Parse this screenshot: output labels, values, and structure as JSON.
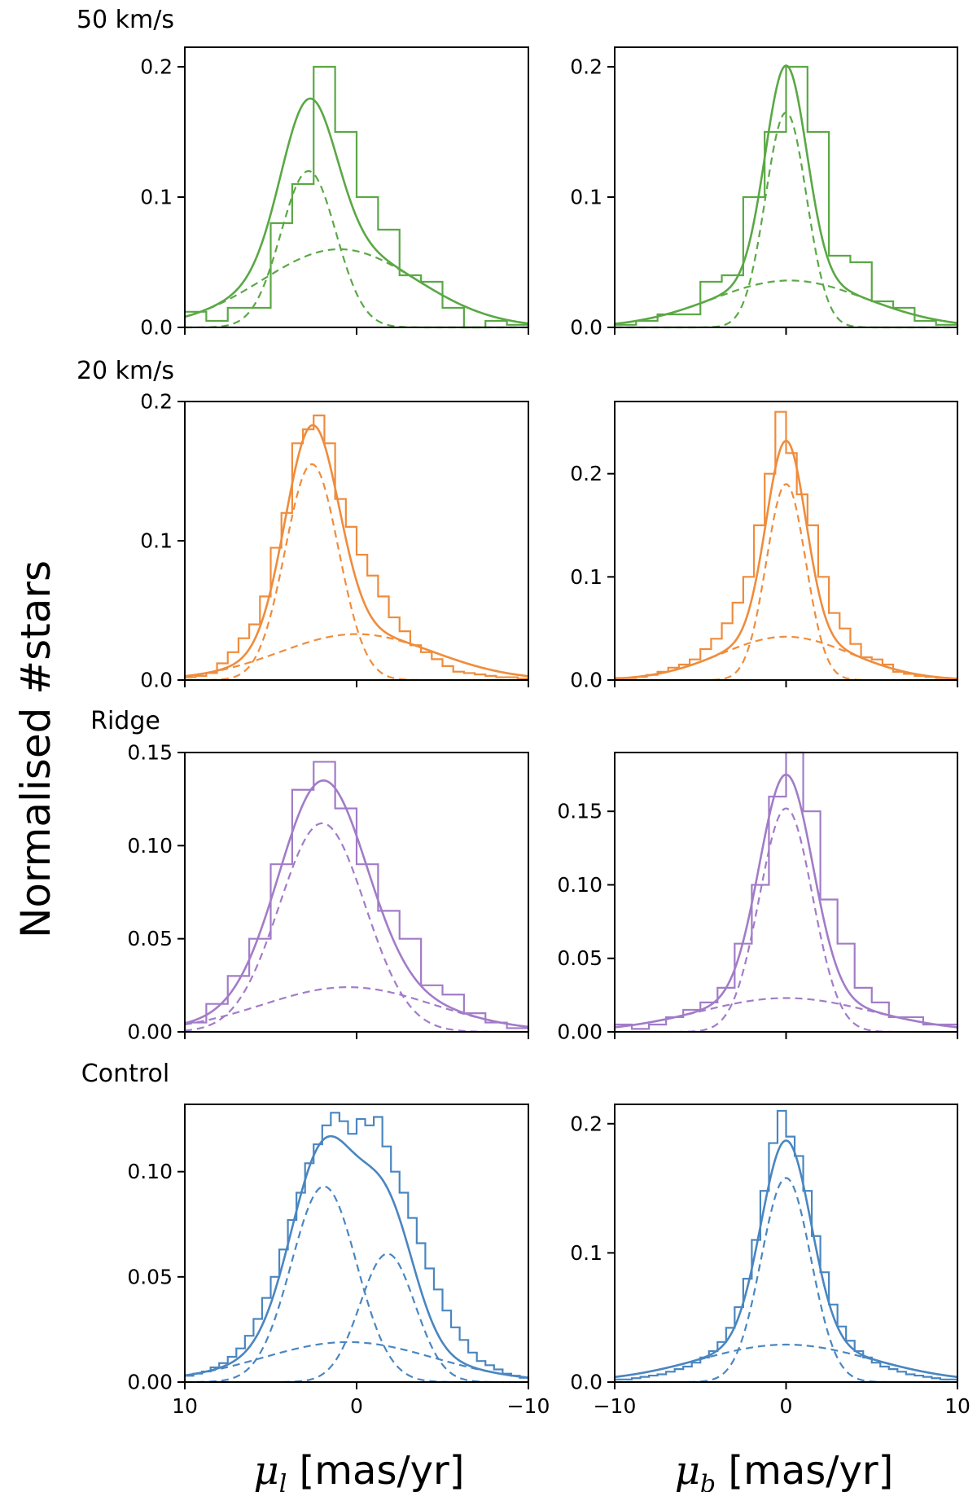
{
  "figure": {
    "ylabel": "Normalised #stars",
    "xlabel_left": {
      "symbol": "μ",
      "sub": "l",
      "unit": " [mas/yr]"
    },
    "xlabel_right": {
      "symbol": "μ",
      "sub": "b",
      "unit": " [mas/yr]"
    }
  },
  "chart_data": [
    {
      "type": "histogram",
      "row_label": "50 km/s",
      "color": "#5aa845",
      "xaxis": "mu_l",
      "xlim": [
        10,
        -10
      ],
      "ylim": [
        0,
        0.215
      ],
      "yticks": [
        0.0,
        0.1,
        0.2
      ],
      "ytick_labels": [
        "0.0",
        "0.1",
        "0.2"
      ],
      "xtick_labels": [],
      "bin_edges": [
        10,
        8.75,
        7.5,
        6.25,
        5,
        3.75,
        2.5,
        1.25,
        0,
        -1.25,
        -2.5,
        -3.75,
        -5,
        -6.25,
        -7.5,
        -8.75,
        -10
      ],
      "bin_values": [
        0.012,
        0.005,
        0.015,
        0.015,
        0.08,
        0.11,
        0.2,
        0.15,
        0.1,
        0.075,
        0.04,
        0.035,
        0.015,
        0.0,
        0.005,
        0.002
      ],
      "components": [
        {
          "style": "dashed",
          "amp": 0.12,
          "mu": 2.8,
          "sigma": 1.6
        },
        {
          "style": "dashed",
          "amp": 0.06,
          "mu": 1.0,
          "sigma": 4.5
        }
      ]
    },
    {
      "type": "histogram",
      "row_label": "",
      "color": "#5aa845",
      "xaxis": "mu_b",
      "xlim": [
        -10,
        10
      ],
      "ylim": [
        0,
        0.215
      ],
      "yticks": [
        0.0,
        0.1,
        0.2
      ],
      "ytick_labels": [
        "0.0",
        "0.1",
        "0.2"
      ],
      "xtick_labels": [],
      "bin_edges": [
        -10,
        -8.75,
        -7.5,
        -6.25,
        -5,
        -3.75,
        -2.5,
        -1.25,
        0,
        1.25,
        2.5,
        3.75,
        5,
        6.25,
        7.5,
        8.75,
        10
      ],
      "bin_values": [
        0.002,
        0.005,
        0.01,
        0.01,
        0.035,
        0.04,
        0.1,
        0.15,
        0.2,
        0.15,
        0.055,
        0.05,
        0.02,
        0.015,
        0.005,
        0.002
      ],
      "components": [
        {
          "style": "dashed",
          "amp": 0.165,
          "mu": 0.0,
          "sigma": 1.2
        },
        {
          "style": "dashed",
          "amp": 0.036,
          "mu": 0.2,
          "sigma": 4.5
        }
      ]
    },
    {
      "type": "histogram",
      "row_label": "20 km/s",
      "color": "#ef8c3c",
      "xaxis": "mu_l",
      "xlim": [
        10,
        -10
      ],
      "ylim": [
        0,
        0.2
      ],
      "yticks": [
        0.0,
        0.1,
        0.2
      ],
      "ytick_labels": [
        "0.0",
        "0.1",
        "0.2"
      ],
      "xtick_labels": [],
      "bin_edges": [
        10,
        9.375,
        8.75,
        8.125,
        7.5,
        6.875,
        6.25,
        5.625,
        5,
        4.375,
        3.75,
        3.125,
        2.5,
        1.875,
        1.25,
        0.625,
        0,
        -0.625,
        -1.25,
        -1.875,
        -2.5,
        -3.125,
        -3.75,
        -4.375,
        -5,
        -5.625,
        -6.25,
        -6.875,
        -7.5,
        -8.125,
        -8.75,
        -9.375,
        -10
      ],
      "bin_values": [
        0.002,
        0.003,
        0.005,
        0.012,
        0.02,
        0.03,
        0.04,
        0.06,
        0.095,
        0.12,
        0.17,
        0.18,
        0.19,
        0.17,
        0.13,
        0.11,
        0.09,
        0.075,
        0.06,
        0.045,
        0.035,
        0.025,
        0.02,
        0.015,
        0.01,
        0.006,
        0.005,
        0.004,
        0.003,
        0.002,
        0.002,
        0.001
      ],
      "components": [
        {
          "style": "dashed",
          "amp": 0.155,
          "mu": 2.6,
          "sigma": 1.55
        },
        {
          "style": "dashed",
          "amp": 0.033,
          "mu": 0.0,
          "sigma": 4.5
        }
      ]
    },
    {
      "type": "histogram",
      "row_label": "",
      "color": "#ef8c3c",
      "xaxis": "mu_b",
      "xlim": [
        -10,
        10
      ],
      "ylim": [
        0,
        0.27
      ],
      "yticks": [
        0.0,
        0.1,
        0.2
      ],
      "ytick_labels": [
        "0.0",
        "0.1",
        "0.2"
      ],
      "xtick_labels": [],
      "bin_edges": [
        -10,
        -9.375,
        -8.75,
        -8.125,
        -7.5,
        -6.875,
        -6.25,
        -5.625,
        -5,
        -4.375,
        -3.75,
        -3.125,
        -2.5,
        -1.875,
        -1.25,
        -0.625,
        0,
        0.625,
        1.25,
        1.875,
        2.5,
        3.125,
        3.75,
        4.375,
        5,
        5.625,
        6.25,
        6.875,
        7.5,
        8.125,
        8.75,
        9.375,
        10
      ],
      "bin_values": [
        0.002,
        0.002,
        0.003,
        0.005,
        0.008,
        0.012,
        0.015,
        0.02,
        0.03,
        0.04,
        0.055,
        0.075,
        0.1,
        0.15,
        0.2,
        0.26,
        0.22,
        0.18,
        0.15,
        0.1,
        0.065,
        0.05,
        0.035,
        0.022,
        0.02,
        0.015,
        0.008,
        0.006,
        0.004,
        0.003,
        0.002,
        0.001
      ],
      "components": [
        {
          "style": "dashed",
          "amp": 0.19,
          "mu": 0.0,
          "sigma": 1.15
        },
        {
          "style": "dashed",
          "amp": 0.042,
          "mu": 0.0,
          "sigma": 3.8
        }
      ]
    },
    {
      "type": "histogram",
      "row_label": "Ridge",
      "color": "#a27cc8",
      "xaxis": "mu_l",
      "xlim": [
        10,
        -10
      ],
      "ylim": [
        0,
        0.15
      ],
      "yticks": [
        0.0,
        0.05,
        0.1,
        0.15
      ],
      "ytick_labels": [
        "0.00",
        "0.05",
        "0.10",
        "0.15"
      ],
      "xtick_labels": [],
      "bin_edges": [
        10,
        8.75,
        7.5,
        6.25,
        5,
        3.75,
        2.5,
        1.25,
        0,
        -1.25,
        -2.5,
        -3.75,
        -5,
        -6.25,
        -7.5,
        -8.75,
        -10
      ],
      "bin_values": [
        0.005,
        0.015,
        0.03,
        0.05,
        0.09,
        0.13,
        0.145,
        0.12,
        0.09,
        0.065,
        0.05,
        0.025,
        0.02,
        0.01,
        0.005,
        0.002
      ],
      "components": [
        {
          "style": "dashed",
          "amp": 0.112,
          "mu": 2.0,
          "sigma": 2.5
        },
        {
          "style": "dashed",
          "amp": 0.024,
          "mu": 0.5,
          "sigma": 5.0
        }
      ]
    },
    {
      "type": "histogram",
      "row_label": "",
      "color": "#a27cc8",
      "xaxis": "mu_b",
      "xlim": [
        -10,
        10
      ],
      "ylim": [
        0,
        0.19
      ],
      "yticks": [
        0.0,
        0.05,
        0.1,
        0.15
      ],
      "ytick_labels": [
        "0.00",
        "0.05",
        "0.10",
        "0.15"
      ],
      "xtick_labels": [],
      "bin_edges": [
        -10,
        -9.0,
        -8.0,
        -7.0,
        -6.0,
        -5.0,
        -4.0,
        -3.0,
        -2.0,
        -1.0,
        0,
        1.0,
        2.0,
        3.0,
        4.0,
        5.0,
        6.0,
        7.0,
        8.0,
        9.0,
        10
      ],
      "bin_values": [
        0.005,
        0.002,
        0.005,
        0.01,
        0.015,
        0.02,
        0.03,
        0.06,
        0.1,
        0.16,
        0.19,
        0.15,
        0.09,
        0.06,
        0.03,
        0.02,
        0.01,
        0.01,
        0.005,
        0.005
      ],
      "components": [
        {
          "style": "dashed",
          "amp": 0.152,
          "mu": 0.0,
          "sigma": 1.55
        },
        {
          "style": "dashed",
          "amp": 0.023,
          "mu": 0.0,
          "sigma": 5.0
        }
      ]
    },
    {
      "type": "histogram",
      "row_label": "Control",
      "color": "#4a86c0",
      "xaxis": "mu_l",
      "xlim": [
        10,
        -10
      ],
      "ylim": [
        0,
        0.132
      ],
      "yticks": [
        0.0,
        0.05,
        0.1
      ],
      "ytick_labels": [
        "0.00",
        "0.05",
        "0.10"
      ],
      "xticks": [
        10,
        0,
        -10
      ],
      "xtick_labels": [
        "10",
        "0",
        "−10"
      ],
      "bin_edges": [
        10,
        9.5,
        9,
        8.5,
        8,
        7.5,
        7,
        6.5,
        6,
        5.5,
        5,
        4.5,
        4,
        3.5,
        3,
        2.5,
        2,
        1.5,
        1,
        0.5,
        0,
        -0.5,
        -1,
        -1.5,
        -2,
        -2.5,
        -3,
        -3.5,
        -4,
        -4.5,
        -5,
        -5.5,
        -6,
        -6.5,
        -7,
        -7.5,
        -8,
        -8.5,
        -9,
        -9.5,
        -10
      ],
      "bin_values": [
        0.003,
        0.004,
        0.005,
        0.007,
        0.009,
        0.012,
        0.016,
        0.022,
        0.03,
        0.04,
        0.05,
        0.063,
        0.077,
        0.09,
        0.104,
        0.113,
        0.122,
        0.128,
        0.124,
        0.118,
        0.125,
        0.122,
        0.126,
        0.112,
        0.1,
        0.09,
        0.078,
        0.066,
        0.054,
        0.044,
        0.034,
        0.026,
        0.02,
        0.014,
        0.01,
        0.008,
        0.006,
        0.004,
        0.003,
        0.002
      ],
      "components": [
        {
          "style": "dashed",
          "amp": 0.093,
          "mu": 1.9,
          "sigma": 1.9
        },
        {
          "style": "dashed",
          "amp": 0.061,
          "mu": -1.8,
          "sigma": 1.6
        },
        {
          "style": "dashed",
          "amp": 0.019,
          "mu": 0.5,
          "sigma": 5.0
        }
      ]
    },
    {
      "type": "histogram",
      "row_label": "",
      "color": "#4a86c0",
      "xaxis": "mu_b",
      "xlim": [
        -10,
        10
      ],
      "ylim": [
        0,
        0.215
      ],
      "yticks": [
        0.0,
        0.1,
        0.2
      ],
      "ytick_labels": [
        "0.0",
        "0.1",
        "0.2"
      ],
      "xticks": [
        -10,
        0,
        10
      ],
      "xtick_labels": [
        "−10",
        "0",
        "10"
      ],
      "bin_edges": [
        -10,
        -9.5,
        -9,
        -8.5,
        -8,
        -7.5,
        -7,
        -6.5,
        -6,
        -5.5,
        -5,
        -4.5,
        -4,
        -3.5,
        -3,
        -2.5,
        -2,
        -1.5,
        -1,
        -0.5,
        0,
        0.5,
        1,
        1.5,
        2,
        2.5,
        3,
        3.5,
        4,
        4.5,
        5,
        5.5,
        6,
        6.5,
        7,
        7.5,
        8,
        8.5,
        9,
        9.5,
        10
      ],
      "bin_values": [
        0.002,
        0.002,
        0.003,
        0.004,
        0.005,
        0.006,
        0.008,
        0.01,
        0.012,
        0.015,
        0.019,
        0.024,
        0.031,
        0.042,
        0.058,
        0.08,
        0.11,
        0.148,
        0.185,
        0.21,
        0.19,
        0.175,
        0.148,
        0.113,
        0.085,
        0.06,
        0.043,
        0.032,
        0.024,
        0.019,
        0.015,
        0.012,
        0.01,
        0.008,
        0.006,
        0.005,
        0.004,
        0.003,
        0.002,
        0.002
      ],
      "components": [
        {
          "style": "dashed",
          "amp": 0.158,
          "mu": 0.0,
          "sigma": 1.45
        },
        {
          "style": "dashed",
          "amp": 0.029,
          "mu": 0.0,
          "sigma": 5.0
        }
      ]
    }
  ]
}
